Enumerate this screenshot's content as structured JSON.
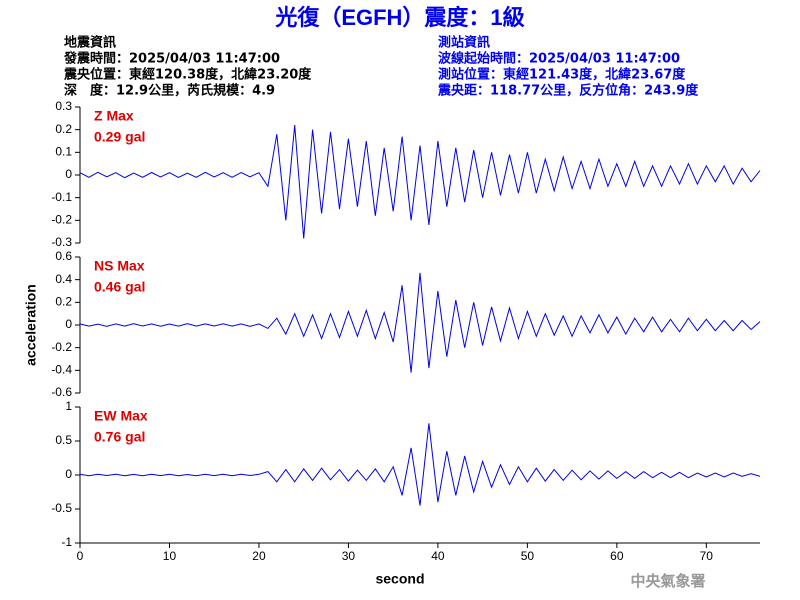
{
  "header": {
    "title": "光復（EGFH）震度：1級",
    "left": [
      "地震資訊",
      "發震時間：2025/04/03 11:47:00",
      "震央位置：東經120.38度，北緯23.20度",
      "深　度：12.9公里，芮氏規模：4.9"
    ],
    "right": [
      "測站資訊",
      "波線起始時間：2025/04/03 11:47:00",
      "測站位置：東經121.43度，北緯23.67度",
      "震央距：118.77公里，反方位角：243.9度"
    ]
  },
  "footer": "中央氣象署",
  "chart_data": [
    {
      "type": "line",
      "annotations": [
        "Z Max",
        "0.29 gal"
      ],
      "annotation_color": "#e00000",
      "color": "#0000ee",
      "x": [
        0,
        1,
        2,
        3,
        4,
        5,
        6,
        7,
        8,
        9,
        10,
        11,
        12,
        13,
        14,
        15,
        16,
        17,
        18,
        19,
        20,
        21,
        22,
        23,
        24,
        25,
        26,
        27,
        28,
        29,
        30,
        31,
        32,
        33,
        34,
        35,
        36,
        37,
        38,
        39,
        40,
        41,
        42,
        43,
        44,
        45,
        46,
        47,
        48,
        49,
        50,
        51,
        52,
        53,
        54,
        55,
        56,
        57,
        58,
        59,
        60,
        61,
        62,
        63,
        64,
        65,
        66,
        67,
        68,
        69,
        70,
        71,
        72,
        73,
        74,
        75,
        76
      ],
      "values": [
        0.01,
        -0.01,
        0.012,
        -0.008,
        0.01,
        -0.012,
        0.009,
        -0.01,
        0.011,
        -0.009,
        0.01,
        -0.011,
        0.008,
        -0.01,
        0.012,
        -0.009,
        0.01,
        -0.01,
        0.011,
        -0.008,
        0.01,
        -0.05,
        0.18,
        -0.2,
        0.22,
        -0.28,
        0.2,
        -0.17,
        0.19,
        -0.15,
        0.16,
        -0.14,
        0.15,
        -0.18,
        0.12,
        -0.16,
        0.17,
        -0.2,
        0.13,
        -0.22,
        0.15,
        -0.14,
        0.12,
        -0.12,
        0.11,
        -0.1,
        0.1,
        -0.09,
        0.09,
        -0.08,
        0.1,
        -0.08,
        0.07,
        -0.07,
        0.08,
        -0.06,
        0.06,
        -0.06,
        0.07,
        -0.05,
        0.05,
        -0.05,
        0.06,
        -0.05,
        0.04,
        -0.05,
        0.04,
        -0.04,
        0.05,
        -0.04,
        0.04,
        -0.03,
        0.04,
        -0.04,
        0.03,
        -0.03,
        0.02
      ],
      "xlim": [
        0,
        76
      ],
      "ylim": [
        -0.3,
        0.3
      ],
      "yticks": [
        0.3,
        0.2,
        0.1,
        0,
        -0.1,
        -0.2,
        -0.3
      ]
    },
    {
      "type": "line",
      "annotations": [
        "NS Max",
        "0.46 gal"
      ],
      "annotation_color": "#e00000",
      "color": "#0000ee",
      "ylabel": "acceleration",
      "x": [
        0,
        1,
        2,
        3,
        4,
        5,
        6,
        7,
        8,
        9,
        10,
        11,
        12,
        13,
        14,
        15,
        16,
        17,
        18,
        19,
        20,
        21,
        22,
        23,
        24,
        25,
        26,
        27,
        28,
        29,
        30,
        31,
        32,
        33,
        34,
        35,
        36,
        37,
        38,
        39,
        40,
        41,
        42,
        43,
        44,
        45,
        46,
        47,
        48,
        49,
        50,
        51,
        52,
        53,
        54,
        55,
        56,
        57,
        58,
        59,
        60,
        61,
        62,
        63,
        64,
        65,
        66,
        67,
        68,
        69,
        70,
        71,
        72,
        73,
        74,
        75,
        76
      ],
      "values": [
        0.01,
        -0.01,
        0.008,
        -0.012,
        0.01,
        -0.01,
        0.012,
        -0.009,
        0.01,
        -0.011,
        0.009,
        -0.01,
        0.012,
        -0.01,
        0.01,
        -0.009,
        0.011,
        -0.01,
        0.01,
        -0.012,
        0.01,
        -0.03,
        0.06,
        -0.08,
        0.1,
        -0.1,
        0.09,
        -0.12,
        0.1,
        -0.11,
        0.12,
        -0.1,
        0.13,
        -0.12,
        0.11,
        -0.15,
        0.35,
        -0.42,
        0.46,
        -0.38,
        0.3,
        -0.28,
        0.22,
        -0.2,
        0.2,
        -0.18,
        0.16,
        -0.14,
        0.15,
        -0.12,
        0.12,
        -0.1,
        0.1,
        -0.09,
        0.08,
        -0.1,
        0.08,
        -0.07,
        0.09,
        -0.07,
        0.07,
        -0.08,
        0.06,
        -0.06,
        0.07,
        -0.06,
        0.05,
        -0.06,
        0.06,
        -0.05,
        0.05,
        -0.05,
        0.04,
        -0.05,
        0.04,
        -0.04,
        0.03
      ],
      "xlim": [
        0,
        76
      ],
      "ylim": [
        -0.6,
        0.6
      ],
      "yticks": [
        0.6,
        0.4,
        0.2,
        0,
        -0.2,
        -0.4,
        -0.6
      ]
    },
    {
      "type": "line",
      "annotations": [
        "EW Max",
        "0.76 gal"
      ],
      "annotation_color": "#e00000",
      "color": "#0000ee",
      "xlabel": "second",
      "x": [
        0,
        1,
        2,
        3,
        4,
        5,
        6,
        7,
        8,
        9,
        10,
        11,
        12,
        13,
        14,
        15,
        16,
        17,
        18,
        19,
        20,
        21,
        22,
        23,
        24,
        25,
        26,
        27,
        28,
        29,
        30,
        31,
        32,
        33,
        34,
        35,
        36,
        37,
        38,
        39,
        40,
        41,
        42,
        43,
        44,
        45,
        46,
        47,
        48,
        49,
        50,
        51,
        52,
        53,
        54,
        55,
        56,
        57,
        58,
        59,
        60,
        61,
        62,
        63,
        64,
        65,
        66,
        67,
        68,
        69,
        70,
        71,
        72,
        73,
        74,
        75,
        76
      ],
      "values": [
        0.01,
        -0.01,
        0.012,
        -0.008,
        0.01,
        -0.012,
        0.009,
        -0.01,
        0.011,
        -0.009,
        0.01,
        -0.011,
        0.008,
        -0.01,
        0.012,
        -0.009,
        0.01,
        -0.01,
        0.011,
        -0.008,
        0.01,
        0.05,
        -0.1,
        0.08,
        -0.1,
        0.09,
        -0.08,
        0.1,
        -0.07,
        0.08,
        -0.09,
        0.07,
        -0.08,
        0.09,
        -0.1,
        0.12,
        -0.3,
        0.4,
        -0.45,
        0.76,
        -0.4,
        0.35,
        -0.3,
        0.28,
        -0.25,
        0.2,
        -0.18,
        0.15,
        -0.14,
        0.12,
        -0.1,
        0.1,
        -0.09,
        0.08,
        -0.08,
        0.07,
        -0.07,
        0.06,
        -0.06,
        0.06,
        -0.05,
        0.05,
        -0.05,
        0.05,
        -0.04,
        0.04,
        -0.04,
        0.04,
        -0.04,
        0.03,
        -0.03,
        0.03,
        -0.03,
        0.03,
        -0.02,
        0.02,
        -0.02
      ],
      "xlim": [
        0,
        76
      ],
      "ylim": [
        -1,
        1
      ],
      "yticks": [
        1,
        0.5,
        0,
        -0.5,
        -1
      ],
      "xticks": [
        0,
        10,
        20,
        30,
        40,
        50,
        60,
        70
      ]
    }
  ]
}
